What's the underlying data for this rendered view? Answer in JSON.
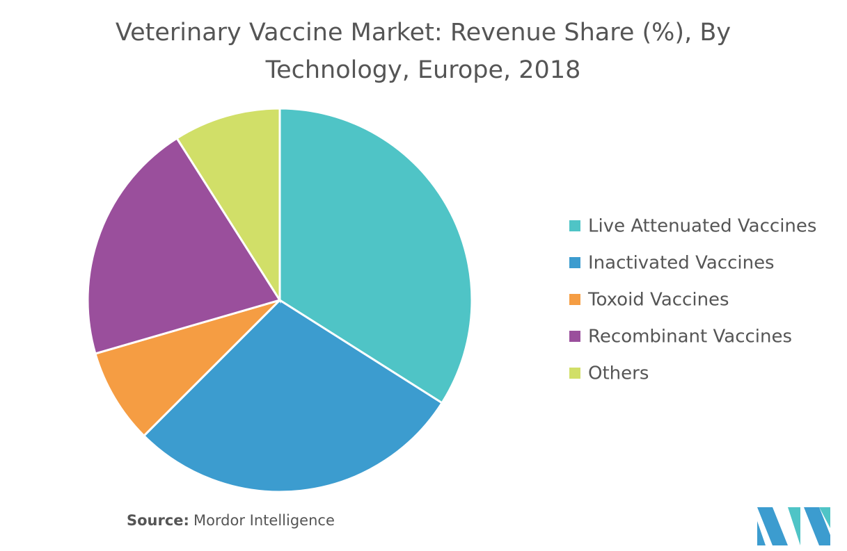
{
  "chart_data": {
    "type": "pie",
    "title": "Veterinary Vaccine Market: Revenue Share (%), By Technology, Europe, 2018",
    "categories": [
      "Live Attenuated Vaccines",
      "Inactivated Vaccines",
      "Toxoid Vaccines",
      "Recombinant Vaccines",
      "Others"
    ],
    "values": [
      34,
      28.5,
      8,
      20.5,
      9
    ],
    "colors": [
      "#4fc4c6",
      "#3c9ccf",
      "#f59d43",
      "#9a4f9c",
      "#d1df68"
    ],
    "legend": "right",
    "source_label": "Source:",
    "source": "Mordor Intelligence"
  }
}
